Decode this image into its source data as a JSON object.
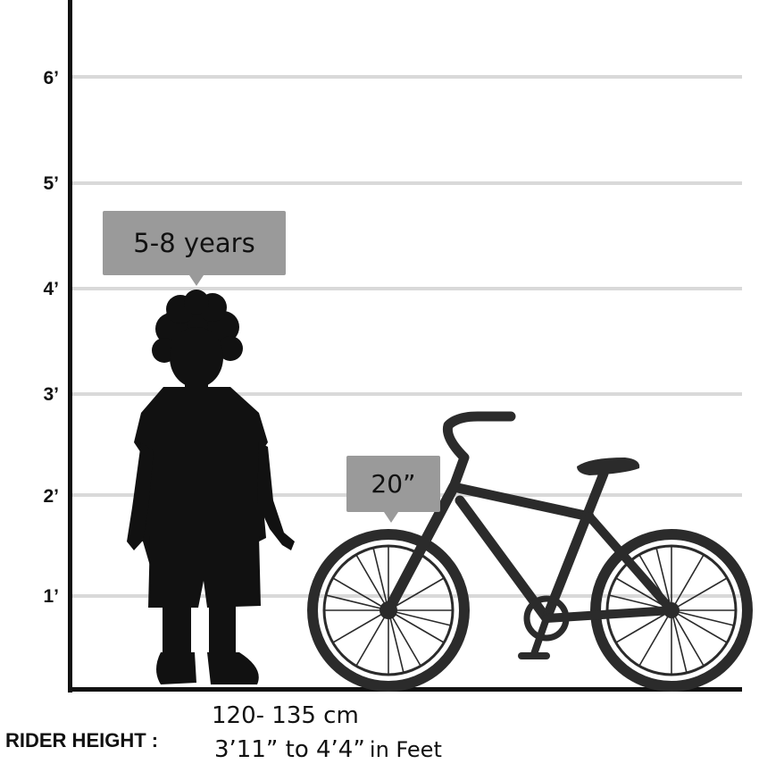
{
  "height_scale": {
    "ticks": [
      {
        "label": "6’",
        "feet": 6
      },
      {
        "label": "5’",
        "feet": 5
      },
      {
        "label": "4’",
        "feet": 4
      },
      {
        "label": "3’",
        "feet": 3
      },
      {
        "label": "2’",
        "feet": 2
      },
      {
        "label": "1’",
        "feet": 1
      }
    ]
  },
  "child": {
    "age_label": "5-8 years"
  },
  "bicycle": {
    "wheel_size_label": "20”"
  },
  "rider_height": {
    "label": "RIDER HEIGHT :",
    "cm_range": "120- 135 cm",
    "feet_range": "3’11” to 4’4”",
    "feet_unit": "in Feet"
  },
  "colors": {
    "silhouette": "#111111",
    "bicycle": "#2b2b2b",
    "bubble": "#9a9a9a",
    "grid": "#d9d9d9"
  }
}
